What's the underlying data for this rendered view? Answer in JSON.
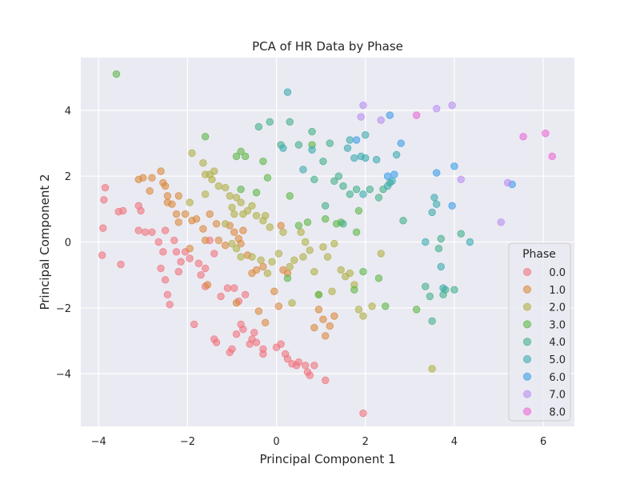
{
  "chart_data": {
    "type": "scatter",
    "title": "PCA of HR Data by Phase",
    "xlabel": "Principal Component 1",
    "ylabel": "Principal Component 2",
    "xlim": [
      -4.4,
      6.7
    ],
    "ylim": [
      -5.6,
      5.6
    ],
    "xticks": [
      -4,
      -2,
      0,
      2,
      4,
      6
    ],
    "yticks": [
      -4,
      -2,
      0,
      2,
      4
    ],
    "xtick_labels": [
      "−4",
      "−2",
      "0",
      "2",
      "4",
      "6"
    ],
    "ytick_labels": [
      "−4",
      "−2",
      "0",
      "2",
      "4"
    ],
    "grid": true,
    "legend": {
      "title": "Phase",
      "position": "lower-right"
    },
    "series": [
      {
        "name": "0.0",
        "color": "#f0757f",
        "points": [
          [
            -3.85,
            1.65
          ],
          [
            -3.88,
            1.28
          ],
          [
            -3.9,
            0.42
          ],
          [
            -3.92,
            -0.4
          ],
          [
            -3.55,
            0.92
          ],
          [
            -3.45,
            0.95
          ],
          [
            -3.5,
            -0.68
          ],
          [
            -3.1,
            0.35
          ],
          [
            -3.1,
            1.1
          ],
          [
            -3.05,
            0.95
          ],
          [
            -2.95,
            0.3
          ],
          [
            -2.8,
            0.3
          ],
          [
            -2.65,
            0.0
          ],
          [
            -2.55,
            -0.3
          ],
          [
            -2.5,
            0.35
          ],
          [
            -2.6,
            -0.8
          ],
          [
            -2.5,
            -1.15
          ],
          [
            -2.45,
            -1.6
          ],
          [
            -2.4,
            -1.9
          ],
          [
            -2.3,
            0.05
          ],
          [
            -2.25,
            -0.3
          ],
          [
            -2.2,
            -0.9
          ],
          [
            -2.15,
            -0.6
          ],
          [
            -2.05,
            -0.3
          ],
          [
            -1.95,
            -0.5
          ],
          [
            -1.85,
            -2.5
          ],
          [
            -1.75,
            -0.65
          ],
          [
            -1.7,
            -1.0
          ],
          [
            -1.6,
            -0.8
          ],
          [
            -1.6,
            -1.35
          ],
          [
            -1.5,
            0.05
          ],
          [
            -1.4,
            -0.35
          ],
          [
            -1.4,
            -2.95
          ],
          [
            -1.35,
            -3.05
          ],
          [
            -1.25,
            -1.65
          ],
          [
            -1.1,
            -1.4
          ],
          [
            -1.05,
            -3.35
          ],
          [
            -1.0,
            -3.25
          ],
          [
            -0.95,
            -1.4
          ],
          [
            -0.9,
            -2.8
          ],
          [
            -0.85,
            -1.8
          ],
          [
            -0.8,
            -2.5
          ],
          [
            -0.75,
            -2.65
          ],
          [
            -0.7,
            -1.6
          ],
          [
            -0.6,
            -3.1
          ],
          [
            -0.55,
            -2.95
          ],
          [
            -0.5,
            -2.75
          ],
          [
            -0.45,
            -3.05
          ],
          [
            -0.3,
            -3.25
          ],
          [
            -0.3,
            -3.4
          ],
          [
            0.0,
            -3.2
          ],
          [
            0.1,
            -3.1
          ],
          [
            0.2,
            -3.4
          ],
          [
            0.25,
            -3.55
          ],
          [
            0.35,
            -3.7
          ],
          [
            0.45,
            -3.75
          ],
          [
            0.5,
            -3.65
          ],
          [
            0.65,
            -3.75
          ],
          [
            0.7,
            -3.95
          ],
          [
            0.75,
            -4.05
          ],
          [
            0.85,
            -3.75
          ],
          [
            1.1,
            -4.2
          ],
          [
            1.95,
            -5.2
          ]
        ]
      },
      {
        "name": "1.0",
        "color": "#da8a3f",
        "points": [
          [
            -3.1,
            1.9
          ],
          [
            -3.0,
            1.95
          ],
          [
            -2.85,
            1.55
          ],
          [
            -2.8,
            1.95
          ],
          [
            -2.6,
            2.15
          ],
          [
            -2.55,
            1.8
          ],
          [
            -2.5,
            1.7
          ],
          [
            -2.45,
            1.4
          ],
          [
            -2.45,
            1.2
          ],
          [
            -2.35,
            1.15
          ],
          [
            -2.25,
            0.85
          ],
          [
            -2.2,
            1.4
          ],
          [
            -2.2,
            0.6
          ],
          [
            -2.05,
            0.85
          ],
          [
            -1.95,
            -0.2
          ],
          [
            -1.9,
            0.65
          ],
          [
            -1.8,
            0.7
          ],
          [
            -1.65,
            0.4
          ],
          [
            -1.6,
            0.05
          ],
          [
            -1.55,
            -1.3
          ],
          [
            -1.5,
            0.85
          ],
          [
            -1.35,
            0.55
          ],
          [
            -1.3,
            0.05
          ],
          [
            -1.15,
            -0.1
          ],
          [
            -1.05,
            0.5
          ],
          [
            -0.95,
            0.3
          ],
          [
            -0.9,
            -1.85
          ],
          [
            -0.85,
            0.1
          ],
          [
            -0.8,
            -0.05
          ],
          [
            -0.75,
            0.35
          ],
          [
            -0.65,
            -0.4
          ],
          [
            -0.55,
            -0.95
          ],
          [
            -0.45,
            -0.85
          ],
          [
            -0.4,
            -2.1
          ],
          [
            -0.3,
            -0.75
          ],
          [
            -0.25,
            -2.45
          ],
          [
            -0.05,
            -1.5
          ],
          [
            0.15,
            -0.85
          ],
          [
            0.05,
            -1.95
          ],
          [
            0.25,
            -0.95
          ],
          [
            0.85,
            -2.6
          ],
          [
            0.95,
            -2.05
          ],
          [
            1.05,
            -2.35
          ],
          [
            1.1,
            -2.85
          ],
          [
            1.2,
            -2.55
          ],
          [
            1.3,
            -2.25
          ],
          [
            0.1,
            0.5
          ]
        ]
      },
      {
        "name": "2.0",
        "color": "#b0b04a",
        "points": [
          [
            -1.9,
            2.7
          ],
          [
            -1.65,
            2.4
          ],
          [
            -1.5,
            2.05
          ],
          [
            -1.45,
            1.9
          ],
          [
            -1.4,
            2.15
          ],
          [
            -1.3,
            1.7
          ],
          [
            -1.15,
            1.65
          ],
          [
            -1.05,
            1.4
          ],
          [
            -1.0,
            1.05
          ],
          [
            -0.95,
            0.85
          ],
          [
            -0.9,
            1.35
          ],
          [
            -0.8,
            1.2
          ],
          [
            -0.75,
            0.85
          ],
          [
            -0.65,
            0.95
          ],
          [
            -0.55,
            1.1
          ],
          [
            -0.45,
            0.8
          ],
          [
            -0.3,
            0.65
          ],
          [
            -0.25,
            0.8
          ],
          [
            -0.15,
            0.45
          ],
          [
            -1.6,
            2.05
          ],
          [
            -1.15,
            0.55
          ],
          [
            -1.0,
            -0.05
          ],
          [
            -0.9,
            -0.2
          ],
          [
            -0.8,
            -0.45
          ],
          [
            -0.55,
            -0.45
          ],
          [
            -0.35,
            -0.55
          ],
          [
            -0.2,
            -0.95
          ],
          [
            -0.1,
            -0.6
          ],
          [
            0.05,
            -0.35
          ],
          [
            0.15,
            0.3
          ],
          [
            0.3,
            -0.75
          ],
          [
            0.4,
            -0.55
          ],
          [
            0.6,
            -0.45
          ],
          [
            0.65,
            0.0
          ],
          [
            0.75,
            -0.25
          ],
          [
            0.85,
            -0.9
          ],
          [
            0.95,
            -1.6
          ],
          [
            1.05,
            -0.15
          ],
          [
            1.15,
            -0.45
          ],
          [
            1.3,
            -0.05
          ],
          [
            1.45,
            -0.85
          ],
          [
            1.55,
            -1.05
          ],
          [
            1.65,
            -0.95
          ],
          [
            1.75,
            -1.3
          ],
          [
            1.85,
            -2.05
          ],
          [
            1.95,
            -2.25
          ],
          [
            2.15,
            -1.95
          ],
          [
            2.35,
            -0.35
          ],
          [
            3.5,
            -3.85
          ],
          [
            -1.95,
            1.2
          ],
          [
            -1.6,
            1.45
          ],
          [
            0.55,
            0.3
          ],
          [
            1.25,
            -1.5
          ],
          [
            0.35,
            -1.85
          ]
        ]
      },
      {
        "name": "3.0",
        "color": "#5fb84a",
        "points": [
          [
            -3.6,
            5.1
          ],
          [
            -1.6,
            3.2
          ],
          [
            -0.9,
            2.6
          ],
          [
            -0.8,
            2.75
          ],
          [
            -0.7,
            2.6
          ],
          [
            -0.45,
            1.5
          ],
          [
            -0.3,
            2.45
          ],
          [
            -0.2,
            1.95
          ],
          [
            0.5,
            0.5
          ],
          [
            0.7,
            0.6
          ],
          [
            0.8,
            2.95
          ],
          [
            1.1,
            0.7
          ],
          [
            1.35,
            0.55
          ],
          [
            1.45,
            0.6
          ],
          [
            1.8,
            0.3
          ],
          [
            1.95,
            -0.9
          ],
          [
            2.3,
            -1.1
          ],
          [
            2.45,
            -1.95
          ],
          [
            3.15,
            -2.05
          ],
          [
            0.3,
            1.4
          ],
          [
            -0.8,
            1.6
          ],
          [
            0.95,
            -1.6
          ],
          [
            1.75,
            -1.45
          ],
          [
            0.25,
            -1.1
          ],
          [
            1.85,
            0.95
          ]
        ]
      },
      {
        "name": "4.0",
        "color": "#45b08a",
        "points": [
          [
            -0.4,
            3.5
          ],
          [
            -0.15,
            3.65
          ],
          [
            0.1,
            2.95
          ],
          [
            0.3,
            3.65
          ],
          [
            0.5,
            2.95
          ],
          [
            0.8,
            3.35
          ],
          [
            0.85,
            1.9
          ],
          [
            1.05,
            2.45
          ],
          [
            1.1,
            1.1
          ],
          [
            1.2,
            3.0
          ],
          [
            1.3,
            1.85
          ],
          [
            1.5,
            1.7
          ],
          [
            1.65,
            1.45
          ],
          [
            1.8,
            1.6
          ],
          [
            2.1,
            1.6
          ],
          [
            2.3,
            1.35
          ],
          [
            2.4,
            1.6
          ],
          [
            2.55,
            1.8
          ],
          [
            2.85,
            0.65
          ],
          [
            3.35,
            -1.35
          ],
          [
            3.45,
            -1.65
          ],
          [
            3.5,
            -2.4
          ],
          [
            3.75,
            -1.6
          ],
          [
            3.8,
            -1.45
          ],
          [
            4.0,
            -1.45
          ],
          [
            4.15,
            0.25
          ],
          [
            3.7,
            0.1
          ],
          [
            3.65,
            -0.2
          ],
          [
            1.4,
            2.0
          ],
          [
            1.5,
            0.55
          ]
        ]
      },
      {
        "name": "5.0",
        "color": "#3eabb0",
        "points": [
          [
            0.25,
            4.55
          ],
          [
            0.6,
            2.2
          ],
          [
            0.8,
            2.8
          ],
          [
            1.6,
            2.85
          ],
          [
            1.65,
            3.1
          ],
          [
            1.75,
            2.55
          ],
          [
            1.9,
            2.6
          ],
          [
            2.0,
            2.55
          ],
          [
            2.0,
            3.25
          ],
          [
            2.25,
            2.5
          ],
          [
            2.5,
            1.7
          ],
          [
            2.6,
            1.85
          ],
          [
            2.7,
            2.65
          ],
          [
            3.35,
            0.0
          ],
          [
            3.5,
            0.9
          ],
          [
            3.55,
            1.35
          ],
          [
            3.7,
            -0.75
          ],
          [
            3.75,
            -1.4
          ],
          [
            4.35,
            0.0
          ],
          [
            0.15,
            2.85
          ],
          [
            3.6,
            1.15
          ],
          [
            1.95,
            1.45
          ]
        ]
      },
      {
        "name": "6.0",
        "color": "#3e9ee8",
        "points": [
          [
            1.8,
            3.1
          ],
          [
            2.55,
            3.85
          ],
          [
            2.8,
            3.0
          ],
          [
            3.6,
            2.1
          ],
          [
            3.95,
            1.1
          ],
          [
            4.0,
            2.3
          ],
          [
            2.5,
            2.0
          ],
          [
            5.3,
            1.75
          ],
          [
            2.65,
            2.05
          ]
        ]
      },
      {
        "name": "7.0",
        "color": "#b88ef0",
        "points": [
          [
            1.9,
            3.8
          ],
          [
            1.95,
            4.15
          ],
          [
            2.35,
            3.7
          ],
          [
            3.6,
            4.05
          ],
          [
            3.95,
            4.15
          ],
          [
            4.15,
            1.9
          ],
          [
            5.05,
            0.6
          ],
          [
            5.2,
            1.8
          ]
        ]
      },
      {
        "name": "8.0",
        "color": "#ea6ad6",
        "points": [
          [
            3.15,
            3.85
          ],
          [
            5.55,
            3.2
          ],
          [
            6.05,
            3.3
          ],
          [
            6.2,
            2.6
          ]
        ]
      }
    ]
  }
}
